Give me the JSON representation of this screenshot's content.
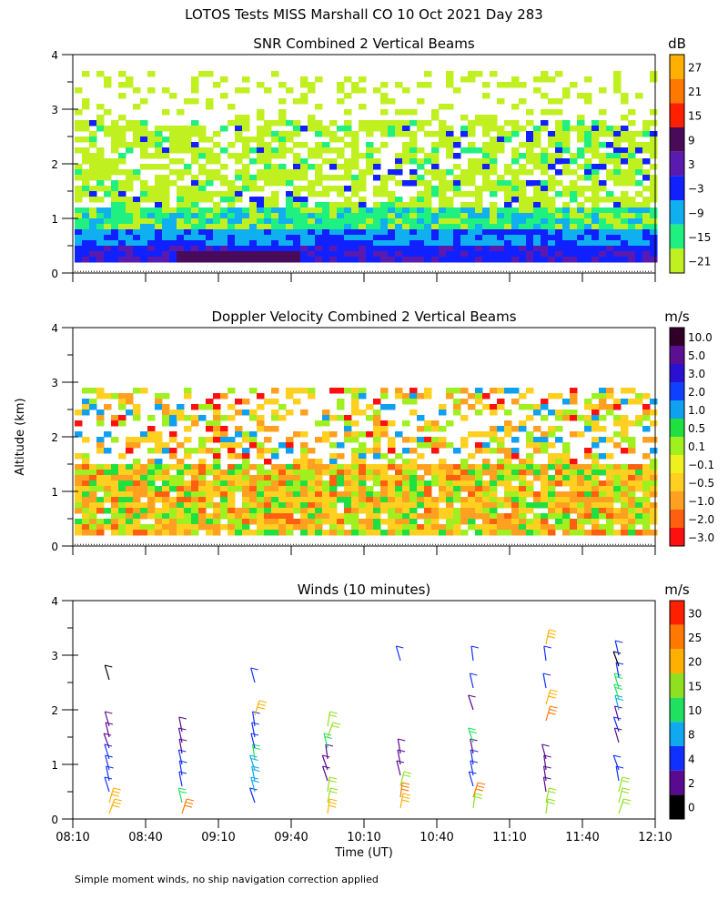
{
  "title": "LOTOS Tests MISS Marshall CO  10 Oct 2021 Day 283",
  "footnote": "Simple moment winds, no ship navigation correction applied",
  "ylabel": "Altitude (km)",
  "xlabel": "Time (UT)",
  "chart_data": [
    {
      "type": "heatmap",
      "title": "SNR Combined 2 Vertical Beams",
      "unit": "dB",
      "xlim": [
        "08:10",
        "12:10"
      ],
      "ylim": [
        0,
        4
      ],
      "yticks": [
        "0",
        "1",
        "2",
        "3",
        "4"
      ],
      "colorbar": {
        "labels": [
          "27",
          "21",
          "15",
          "9",
          "3",
          "−3",
          "−9",
          "−15",
          "−21"
        ],
        "colors": [
          "#ffb000",
          "#ff7800",
          "#ff2000",
          "#4a0a5a",
          "#5a1ab0",
          "#1020ff",
          "#10b0f0",
          "#20f080",
          "#c0f020"
        ]
      },
      "description_values": {
        "low_layer_km": [
          0.25,
          0.8
        ],
        "low_layer_snr_db": [
          3,
          15
        ],
        "mid_layer_km": [
          0.8,
          1.5
        ],
        "mid_layer_snr_db": [
          -15,
          -3
        ],
        "upper_layer_km": [
          1.5,
          3.0
        ],
        "upper_layer_snr_db": [
          -21,
          -15
        ]
      }
    },
    {
      "type": "heatmap",
      "title": "Doppler Velocity Combined 2 Vertical Beams",
      "unit": "m/s",
      "xlim": [
        "08:10",
        "12:10"
      ],
      "ylim": [
        0,
        4
      ],
      "yticks": [
        "0",
        "1",
        "2",
        "3",
        "4"
      ],
      "colorbar": {
        "labels": [
          "10.0",
          "5.0",
          "3.0",
          "2.0",
          "1.0",
          "0.5",
          "0.1",
          "−0.1",
          "−0.5",
          "−1.0",
          "−2.0",
          "−3.0"
        ],
        "colors": [
          "#300028",
          "#5a1090",
          "#2a10d0",
          "#1040ff",
          "#10a0f0",
          "#20e040",
          "#a0f020",
          "#f0f020",
          "#ffd020",
          "#ffa020",
          "#ff6010",
          "#ff1010"
        ]
      }
    },
    {
      "type": "scatter",
      "subtype": "wind barbs",
      "title": "Winds (10 minutes)",
      "unit": "m/s",
      "xlim": [
        "08:10",
        "12:10"
      ],
      "ylim": [
        0,
        4
      ],
      "yticks": [
        "0",
        "1",
        "2",
        "3",
        "4"
      ],
      "xticks": [
        "08:10",
        "08:40",
        "09:10",
        "09:40",
        "10:10",
        "10:40",
        "11:10",
        "11:40",
        "12:10"
      ],
      "colorbar": {
        "labels": [
          "30",
          "25",
          "20",
          "15",
          "10",
          "8",
          "4",
          "2",
          "0"
        ],
        "colors": [
          "#ff2000",
          "#ff7800",
          "#ffb000",
          "#90e020",
          "#20e060",
          "#10a8f0",
          "#1030ff",
          "#5a0a90",
          "#000000"
        ]
      },
      "profiles": [
        {
          "time": "08:25",
          "altitudes_km": [
            0.1,
            0.3,
            0.5,
            0.7,
            0.9,
            1.1,
            1.3,
            1.5,
            1.7,
            2.55
          ],
          "speeds_ms": [
            20,
            20,
            4,
            4,
            4,
            4,
            2,
            2,
            2,
            0
          ]
        },
        {
          "time": "08:55",
          "altitudes_km": [
            0.1,
            0.3,
            0.6,
            0.8,
            1.0,
            1.2,
            1.4,
            1.6
          ],
          "speeds_ms": [
            25,
            10,
            4,
            4,
            4,
            2,
            2,
            2
          ]
        },
        {
          "time": "09:25",
          "altitudes_km": [
            0.3,
            0.5,
            0.7,
            0.9,
            1.1,
            1.3,
            1.5,
            1.7,
            1.9,
            2.5
          ],
          "speeds_ms": [
            4,
            8,
            8,
            8,
            10,
            4,
            4,
            4,
            20,
            4
          ]
        },
        {
          "time": "09:55",
          "altitudes_km": [
            0.1,
            0.3,
            0.5,
            0.7,
            0.9,
            1.1,
            1.3,
            1.5,
            1.7
          ],
          "speeds_ms": [
            20,
            15,
            15,
            2,
            2,
            2,
            10,
            15,
            15
          ]
        },
        {
          "time": "10:25",
          "altitudes_km": [
            0.2,
            0.4,
            0.6,
            0.8,
            1.0,
            1.2,
            2.9
          ],
          "speeds_ms": [
            20,
            25,
            15,
            2,
            2,
            2,
            4
          ]
        },
        {
          "time": "10:55",
          "altitudes_km": [
            0.2,
            0.4,
            0.6,
            0.8,
            1.0,
            1.2,
            1.4,
            2.0,
            2.4,
            2.9
          ],
          "speeds_ms": [
            15,
            25,
            4,
            4,
            4,
            2,
            10,
            2,
            4,
            4
          ]
        },
        {
          "time": "11:25",
          "altitudes_km": [
            0.1,
            0.3,
            0.5,
            0.7,
            0.9,
            1.1,
            1.8,
            2.1,
            2.4,
            2.9,
            3.2
          ],
          "speeds_ms": [
            15,
            15,
            2,
            2,
            2,
            2,
            25,
            20,
            4,
            4,
            20
          ]
        },
        {
          "time": "11:55",
          "altitudes_km": [
            0.1,
            0.3,
            0.5,
            0.7,
            0.9,
            1.4,
            1.6,
            1.8,
            2.0,
            2.2,
            2.4,
            2.6,
            2.8,
            3.0
          ],
          "speeds_ms": [
            15,
            15,
            15,
            4,
            4,
            2,
            4,
            2,
            8,
            10,
            10,
            4,
            0,
            4
          ]
        }
      ]
    }
  ]
}
